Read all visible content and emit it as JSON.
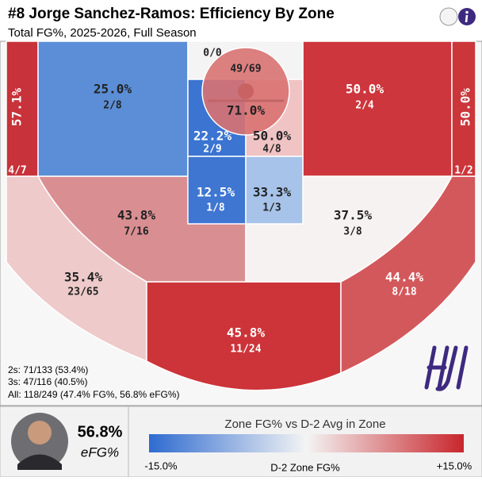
{
  "header": {
    "title": "#8 Jorge Sanchez-Ramos: Efficiency By Zone",
    "subtitle": "Total FG%, 2025-2026, Full Season"
  },
  "zones": [
    {
      "pct": "57.1%",
      "made": "4/7",
      "color": "#c8323a"
    },
    {
      "pct": "25.0%",
      "made": "2/8",
      "color": "#5b8ed6"
    },
    {
      "made": "0/0",
      "color": "#f4f4f4"
    },
    {
      "pct": "71.0%",
      "made": "49/69",
      "color": "#d97272"
    },
    {
      "pct": "22.2%",
      "made": "2/9",
      "color": "#3b74d1"
    },
    {
      "pct": "50.0%",
      "made": "4/8",
      "color": "#f0c3c4"
    },
    {
      "pct": "12.5%",
      "made": "1/8",
      "color": "#3e76d1"
    },
    {
      "pct": "33.3%",
      "made": "1/3",
      "color": "#a7c3e9"
    },
    {
      "pct": "50.0%",
      "made": "2/4",
      "color": "#cd363c"
    },
    {
      "pct": "50.0%",
      "made": "1/2",
      "color": "#cb363b"
    },
    {
      "pct": "43.8%",
      "made": "7/16",
      "color": "#d98f92"
    },
    {
      "pct": "37.5%",
      "made": "3/8",
      "color": "#f7f2f2"
    },
    {
      "pct": "35.4%",
      "made": "23/65",
      "color": "#eecaca"
    },
    {
      "pct": "45.8%",
      "made": "11/24",
      "color": "#cc3439"
    },
    {
      "pct": "44.4%",
      "made": "8/18",
      "color": "#d3585c"
    }
  ],
  "summary": [
    "2s: 71/133 (53.4%)",
    "3s: 47/116 (40.5%)",
    "All: 118/249 (47.4% FG%, 56.8% eFG%)"
  ],
  "footer": {
    "efg": "56.8%",
    "efg_label": "eFG%",
    "legend_title": "Zone FG% vs D-2 Avg in Zone",
    "min_label": "-15.0%",
    "axis_label": "D-2 Zone FG%",
    "max_label": "+15.0%"
  }
}
